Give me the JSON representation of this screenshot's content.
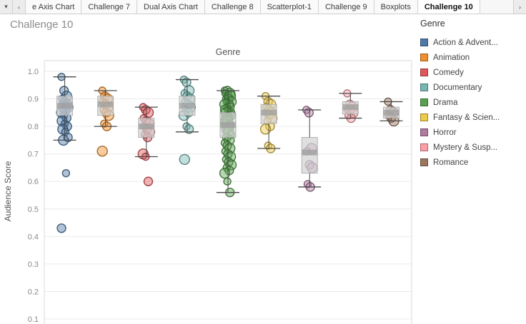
{
  "tab_bar": {
    "dropdown_icon": "▾",
    "scroll_left": "‹",
    "scroll_right": "›",
    "tabs": [
      {
        "label": "e Axis Chart",
        "active": false
      },
      {
        "label": "Challenge 7",
        "active": false
      },
      {
        "label": "Dual Axis Chart",
        "active": false
      },
      {
        "label": "Challenge 8",
        "active": false
      },
      {
        "label": "Scatterplot-1",
        "active": false
      },
      {
        "label": "Challenge 9",
        "active": false
      },
      {
        "label": "Boxplots",
        "active": false
      },
      {
        "label": "Challenge 10",
        "active": true
      }
    ]
  },
  "sheet": {
    "title": "Challenge 10"
  },
  "legend": {
    "title": "Genre",
    "items": [
      {
        "label": "Action & Advent...",
        "color": "#4e79a7"
      },
      {
        "label": "Animation",
        "color": "#f28e2b"
      },
      {
        "label": "Comedy",
        "color": "#e15759"
      },
      {
        "label": "Documentary",
        "color": "#76b7b2"
      },
      {
        "label": "Drama",
        "color": "#59a14f"
      },
      {
        "label": "Fantasy & Scien...",
        "color": "#edc948"
      },
      {
        "label": "Horror",
        "color": "#b07aa1"
      },
      {
        "label": "Mystery & Susp...",
        "color": "#ff9da7"
      },
      {
        "label": "Romance",
        "color": "#9c755f"
      }
    ]
  },
  "chart_data": {
    "type": "boxplot",
    "title": "Genre",
    "xlabel": "",
    "ylabel": "Audience Score",
    "yticks": [
      "1.0",
      "0.9",
      "0.8",
      "0.7",
      "0.6",
      "0.5",
      "0.4",
      "0.3",
      "0.2",
      "0.1"
    ],
    "ylim": [
      0.05,
      1.04
    ],
    "grid": true,
    "legend_position": "right",
    "series": [
      {
        "genre": "Action & Advent...",
        "color": "#4e79a7",
        "points": [
          0.98,
          0.93,
          0.91,
          0.9,
          0.89,
          0.88,
          0.88,
          0.87,
          0.87,
          0.86,
          0.86,
          0.85,
          0.84,
          0.83,
          0.82,
          0.81,
          0.8,
          0.79,
          0.78,
          0.76,
          0.75,
          0.63,
          0.43
        ],
        "box": {
          "lo": 0.75,
          "q1": 0.84,
          "med": 0.875,
          "q3": 0.91,
          "hi": 0.98
        }
      },
      {
        "genre": "Animation",
        "color": "#f28e2b",
        "points": [
          0.93,
          0.91,
          0.9,
          0.89,
          0.88,
          0.87,
          0.86,
          0.85,
          0.84,
          0.81,
          0.8,
          0.71
        ],
        "box": {
          "lo": 0.8,
          "q1": 0.84,
          "med": 0.88,
          "q3": 0.91,
          "hi": 0.93
        }
      },
      {
        "genre": "Comedy",
        "color": "#e15759",
        "points": [
          0.87,
          0.86,
          0.85,
          0.83,
          0.82,
          0.81,
          0.8,
          0.79,
          0.78,
          0.77,
          0.76,
          0.7,
          0.69,
          0.6
        ],
        "box": {
          "lo": 0.69,
          "q1": 0.76,
          "med": 0.8,
          "q3": 0.83,
          "hi": 0.87
        }
      },
      {
        "genre": "Documentary",
        "color": "#76b7b2",
        "points": [
          0.97,
          0.96,
          0.93,
          0.92,
          0.91,
          0.9,
          0.89,
          0.88,
          0.87,
          0.86,
          0.85,
          0.84,
          0.8,
          0.79,
          0.68
        ],
        "box": {
          "lo": 0.78,
          "q1": 0.84,
          "med": 0.875,
          "q3": 0.91,
          "hi": 0.97
        }
      },
      {
        "genre": "Drama",
        "color": "#59a14f",
        "points": [
          0.93,
          0.93,
          0.92,
          0.92,
          0.91,
          0.91,
          0.9,
          0.9,
          0.89,
          0.89,
          0.88,
          0.88,
          0.87,
          0.87,
          0.86,
          0.86,
          0.85,
          0.85,
          0.84,
          0.84,
          0.83,
          0.83,
          0.82,
          0.82,
          0.81,
          0.81,
          0.8,
          0.8,
          0.79,
          0.78,
          0.77,
          0.76,
          0.75,
          0.74,
          0.73,
          0.72,
          0.71,
          0.7,
          0.69,
          0.68,
          0.67,
          0.66,
          0.65,
          0.64,
          0.63,
          0.6,
          0.56
        ],
        "box": {
          "lo": 0.56,
          "q1": 0.76,
          "med": 0.805,
          "q3": 0.85,
          "hi": 0.93
        }
      },
      {
        "genre": "Fantasy & Scien...",
        "color": "#edc948",
        "points": [
          0.91,
          0.89,
          0.88,
          0.87,
          0.86,
          0.85,
          0.85,
          0.84,
          0.83,
          0.82,
          0.8,
          0.79,
          0.73,
          0.72
        ],
        "box": {
          "lo": 0.72,
          "q1": 0.81,
          "med": 0.85,
          "q3": 0.88,
          "hi": 0.91
        }
      },
      {
        "genre": "Horror",
        "color": "#b07aa1",
        "points": [
          0.86,
          0.85,
          0.72,
          0.71,
          0.66,
          0.65,
          0.59,
          0.58
        ],
        "box": {
          "lo": 0.58,
          "q1": 0.63,
          "med": 0.705,
          "q3": 0.76,
          "hi": 0.86
        }
      },
      {
        "genre": "Mystery & Susp...",
        "color": "#ff9da7",
        "points": [
          0.92,
          0.88,
          0.87,
          0.86,
          0.86,
          0.85,
          0.84,
          0.83
        ],
        "box": {
          "lo": 0.83,
          "q1": 0.845,
          "med": 0.87,
          "q3": 0.89,
          "hi": 0.92
        }
      },
      {
        "genre": "Romance",
        "color": "#9c755f",
        "points": [
          0.89,
          0.86,
          0.85,
          0.84,
          0.83,
          0.82
        ],
        "box": {
          "lo": 0.82,
          "q1": 0.83,
          "med": 0.85,
          "q3": 0.87,
          "hi": 0.89
        }
      }
    ]
  }
}
